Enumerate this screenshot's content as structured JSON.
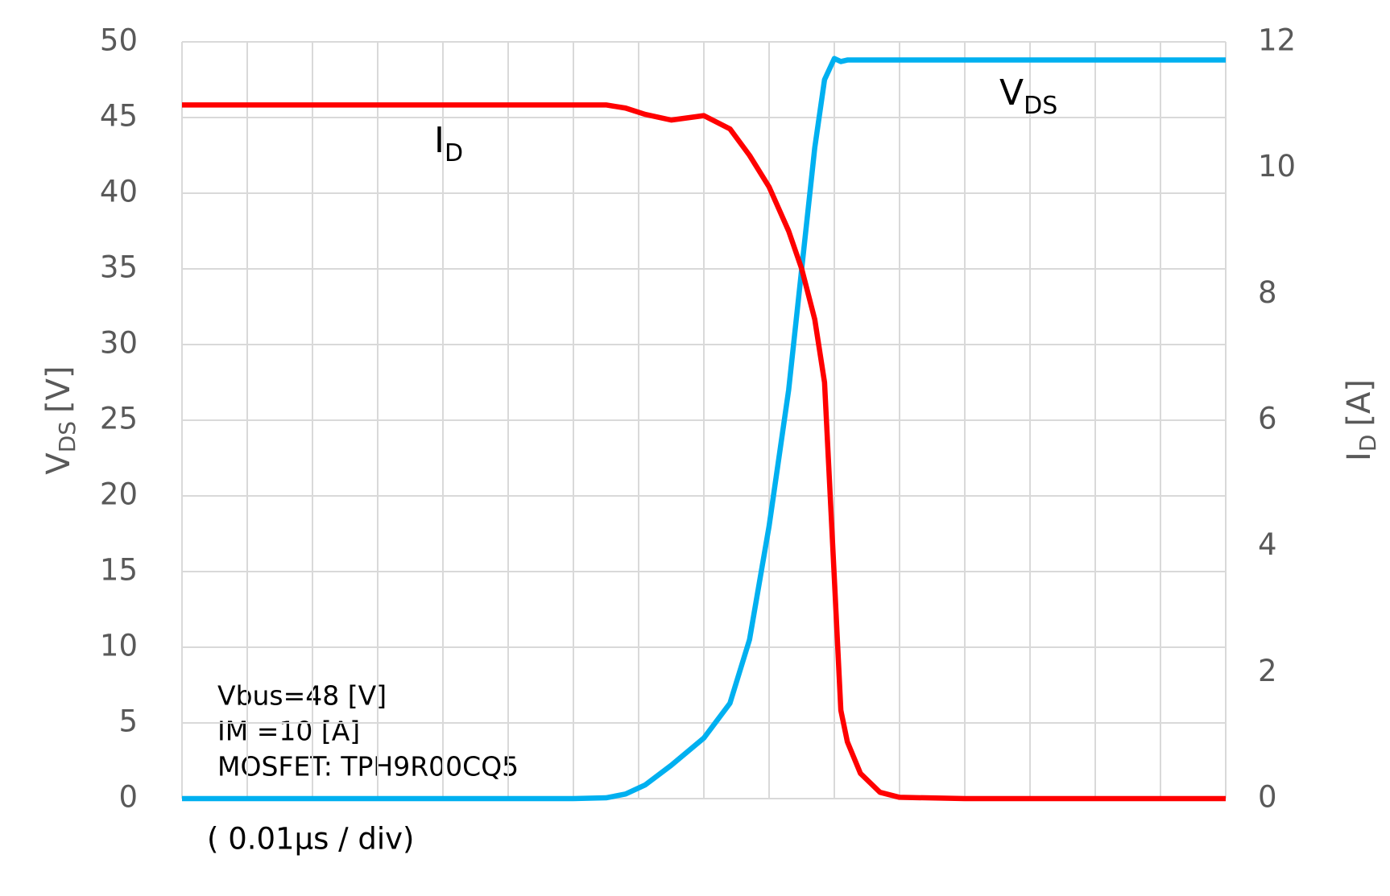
{
  "chart_data": {
    "type": "line",
    "x": [
      0,
      1,
      2,
      3,
      4,
      5,
      6,
      6.5,
      6.8,
      7.1,
      7.5,
      8,
      8.4,
      8.7,
      9,
      9.3,
      9.5,
      9.7,
      9.85,
      10,
      10.1,
      10.2,
      10.4,
      10.7,
      11,
      12,
      13,
      14,
      15,
      16
    ],
    "xlim": [
      0,
      16
    ],
    "x_label": "( 0.01μs / div)",
    "y_label": {
      "main": "V",
      "sub": "DS",
      "unit": "[V]"
    },
    "y2_label": {
      "main": "I",
      "sub": "D",
      "unit": "[A]"
    },
    "ylim": [
      0,
      50
    ],
    "yticks": [
      0,
      5,
      10,
      15,
      20,
      25,
      30,
      35,
      40,
      45,
      50
    ],
    "y2lim": [
      0,
      12
    ],
    "y2ticks": [
      0,
      2,
      4,
      6,
      8,
      10,
      12
    ],
    "grid": true,
    "series": [
      {
        "name": "V",
        "name_sub": "DS",
        "color": "#00b0f0",
        "values": [
          0,
          0,
          0,
          0,
          0,
          0,
          0,
          0.05,
          0.3,
          0.9,
          2.2,
          4,
          6.3,
          10.5,
          18,
          27,
          35,
          43,
          47.5,
          48.9,
          48.7,
          48.8,
          48.8,
          48.8,
          48.8,
          48.8,
          48.8,
          48.8,
          48.8,
          48.8
        ]
      },
      {
        "name": "I",
        "name_sub": "D",
        "color": "#ff0000",
        "axis": "y2",
        "values": [
          11,
          11,
          11,
          11,
          11,
          11,
          11,
          11,
          10.95,
          10.85,
          10.76,
          10.83,
          10.62,
          10.2,
          9.7,
          9.0,
          8.4,
          7.6,
          6.6,
          3.5,
          1.4,
          0.9,
          0.4,
          0.1,
          0.02,
          0,
          0,
          0,
          0,
          0
        ]
      }
    ],
    "annotations": [
      "Vbus=48 [V]",
      "IM =10 [A]",
      "MOSFET: TPH9R00CQ5"
    ]
  }
}
